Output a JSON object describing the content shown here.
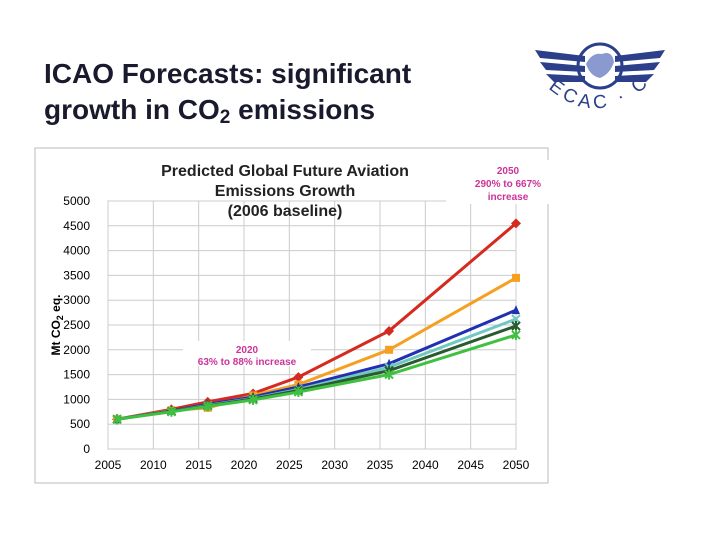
{
  "slide": {
    "title_line1": "ICAO Forecasts: significant",
    "title_line2": "growth in CO",
    "title_sub": "2",
    "title_end": "emissions",
    "logo_text": "ECAC · CEAC"
  },
  "chart_data": {
    "type": "line",
    "title": [
      "Predicted Global Future Aviation",
      "Emissions Growth",
      "(2006 baseline)"
    ],
    "y_label": [
      "Mt CO",
      "2",
      " eq."
    ],
    "annotations": [
      {
        "lines": [
          "2050",
          "290% to 667%",
          "increase"
        ],
        "color": "#cc3399"
      },
      {
        "lines": [
          "2020",
          "63% to 88% increase"
        ],
        "color": "#cc3399"
      }
    ],
    "x": [
      2006,
      2012,
      2016,
      2021,
      2026,
      2036,
      2050
    ],
    "series": [
      {
        "color": "#d42a20",
        "marker": "diamond",
        "values": [
          600,
          800,
          950,
          1120,
          1450,
          2380,
          4550
        ]
      },
      {
        "color": "#f5a020",
        "marker": "square",
        "values": [
          600,
          780,
          830,
          1080,
          1300,
          2000,
          3450
        ]
      },
      {
        "color": "#2030b0",
        "marker": "triangle",
        "values": [
          600,
          770,
          900,
          1050,
          1250,
          1720,
          2800
        ]
      },
      {
        "color": "#70c8c0",
        "marker": "x",
        "values": [
          600,
          760,
          880,
          1020,
          1200,
          1650,
          2620
        ]
      },
      {
        "color": "#2a5a30",
        "marker": "star",
        "values": [
          600,
          760,
          870,
          1010,
          1180,
          1580,
          2480
        ]
      },
      {
        "color": "#40c040",
        "marker": "star",
        "values": [
          600,
          750,
          860,
          990,
          1150,
          1500,
          2300
        ]
      }
    ],
    "xlim": [
      2005,
      2050
    ],
    "ylim": [
      0,
      5000
    ],
    "xticks": [
      2005,
      2010,
      2015,
      2020,
      2025,
      2030,
      2035,
      2040,
      2045,
      2050
    ],
    "yticks": [
      0,
      500,
      1000,
      1500,
      2000,
      2500,
      3000,
      3500,
      4000,
      4500,
      5000
    ],
    "grid": true
  }
}
